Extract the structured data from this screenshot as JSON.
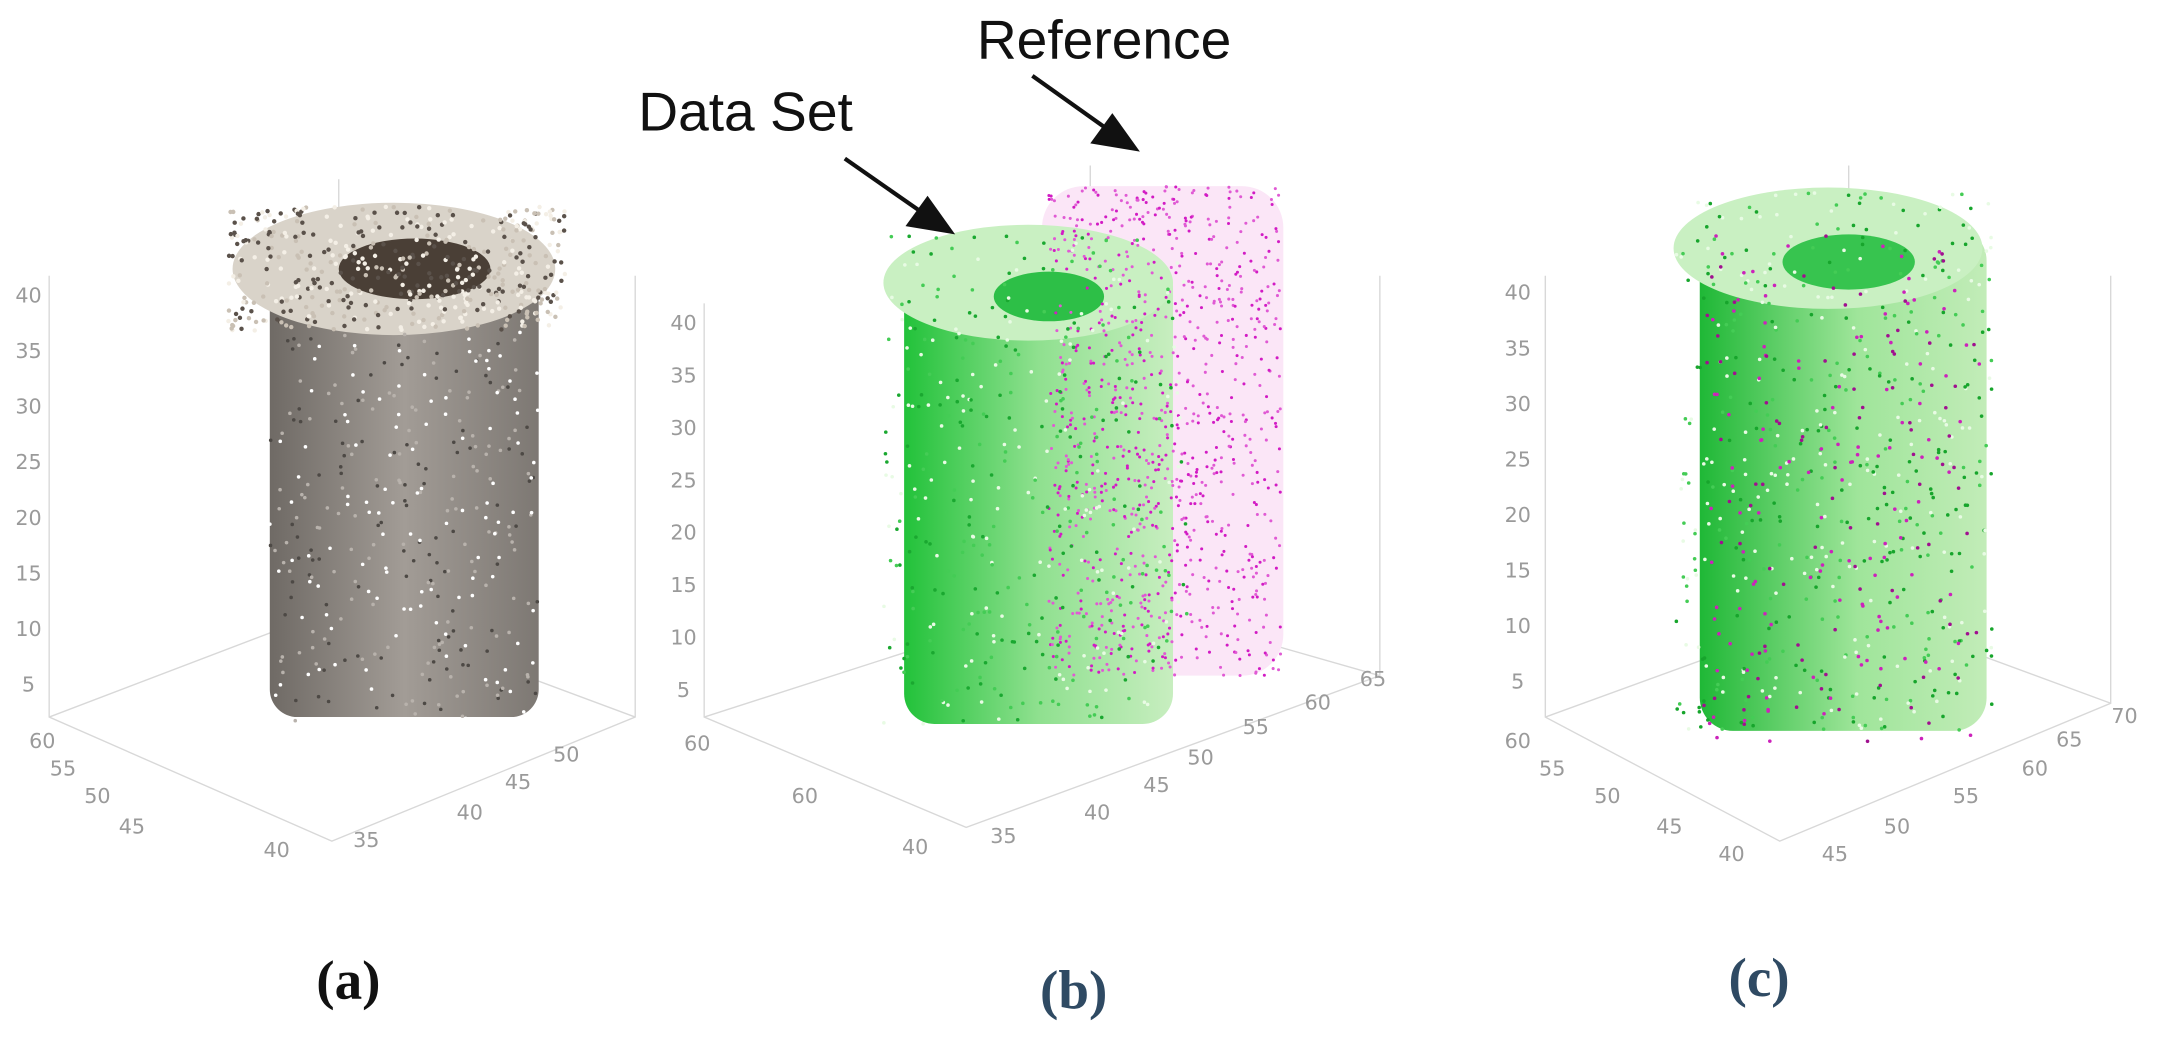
{
  "annotations": {
    "reference": "Reference",
    "data_set": "Data Set"
  },
  "panels": [
    {
      "label": "(a)",
      "z_ticks": [
        "40",
        "35",
        "30",
        "25",
        "20",
        "15",
        "10",
        "5"
      ],
      "x_ticks": [
        "60",
        "55",
        "50",
        "45",
        "40"
      ],
      "y_ticks": [
        "35",
        "40",
        "45",
        "50"
      ]
    },
    {
      "label": "(b)",
      "z_ticks": [
        "40",
        "35",
        "30",
        "25",
        "20",
        "15",
        "10",
        "5"
      ],
      "x_ticks": [
        "60",
        "60",
        "40"
      ],
      "y_ticks": [
        "35",
        "40",
        "45",
        "50",
        "55",
        "60",
        "65"
      ]
    },
    {
      "label": "(c)",
      "z_ticks": [
        "40",
        "35",
        "30",
        "25",
        "20",
        "15",
        "10",
        "5"
      ],
      "x_ticks": [
        "60",
        "55",
        "50",
        "45",
        "40"
      ],
      "y_ticks": [
        "45",
        "50",
        "55",
        "60",
        "65",
        "70"
      ]
    }
  ]
}
